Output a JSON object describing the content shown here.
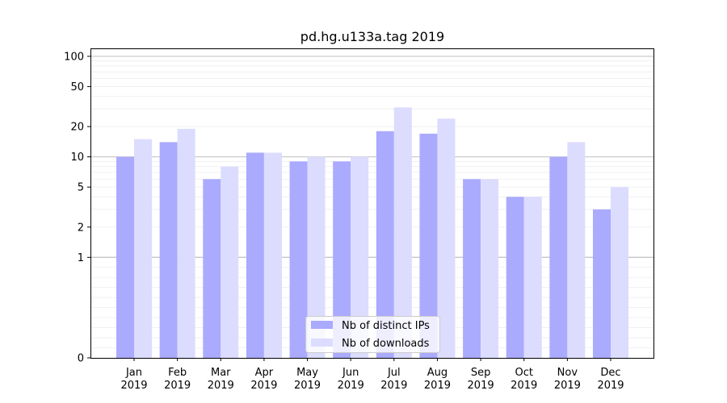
{
  "chart_data": {
    "type": "bar",
    "title": "pd.hg.u133a.tag 2019",
    "xlabel": "",
    "ylabel": "",
    "y_scale": "symlog",
    "ylim": [
      0,
      120
    ],
    "grid": true,
    "legend_position": "lower-center",
    "categories": [
      [
        "Jan",
        "2019"
      ],
      [
        "Feb",
        "2019"
      ],
      [
        "Mar",
        "2019"
      ],
      [
        "Apr",
        "2019"
      ],
      [
        "May",
        "2019"
      ],
      [
        "Jun",
        "2019"
      ],
      [
        "Jul",
        "2019"
      ],
      [
        "Aug",
        "2019"
      ],
      [
        "Sep",
        "2019"
      ],
      [
        "Oct",
        "2019"
      ],
      [
        "Nov",
        "2019"
      ],
      [
        "Dec",
        "2019"
      ]
    ],
    "y_ticks": [
      "0",
      "1",
      "2",
      "5",
      "10",
      "20",
      "50",
      "100"
    ],
    "y_tick_values": [
      0,
      1,
      2,
      5,
      10,
      20,
      50,
      100
    ],
    "series": [
      {
        "name": "Nb of distinct IPs",
        "color": "#aaaaff",
        "values": [
          10,
          14,
          6,
          11,
          9,
          9,
          18,
          17,
          6,
          4,
          10,
          3
        ]
      },
      {
        "name": "Nb of downloads",
        "color": "#dcdcff",
        "values": [
          15,
          19,
          8,
          11,
          10,
          10,
          31,
          24,
          6,
          4,
          14,
          5
        ]
      }
    ]
  }
}
